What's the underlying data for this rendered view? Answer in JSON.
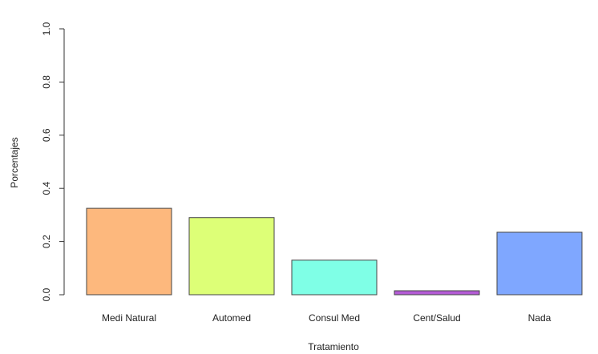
{
  "chart_data": {
    "type": "bar",
    "title": "",
    "xlabel": "Tratamiento",
    "ylabel": "Porcentajes",
    "categories": [
      "Medi Natural",
      "Automed",
      "Consul Med",
      "Cent/Salud",
      "Nada"
    ],
    "values": [
      0.325,
      0.29,
      0.13,
      0.015,
      0.235
    ],
    "colors": [
      "#FDB87D",
      "#DDFF77",
      "#7FFFE6",
      "#B45CD6",
      "#7FA7FF"
    ],
    "ylim": [
      0,
      1.0
    ],
    "yticks": [
      {
        "value": 0.0,
        "label": "0.0"
      },
      {
        "value": 0.2,
        "label": "0.2"
      },
      {
        "value": 0.4,
        "label": "0.4"
      },
      {
        "value": 0.6,
        "label": "0.6"
      },
      {
        "value": 0.8,
        "label": "0.8"
      },
      {
        "value": 1.0,
        "label": "1.0"
      }
    ],
    "grid": false,
    "bar_border_color": "#444444"
  }
}
